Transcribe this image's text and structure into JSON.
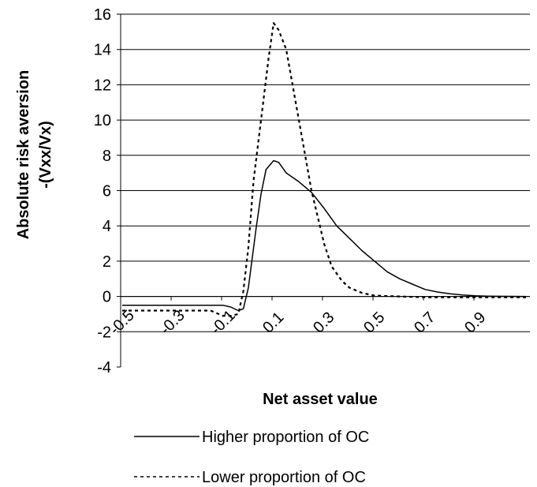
{
  "chart_data": {
    "type": "line",
    "title": "",
    "xlabel": "Net asset value",
    "ylabel_line1": "Absolute risk aversion",
    "ylabel_line2": "-(Vxx/Vx)",
    "ylim": [
      -4,
      16
    ],
    "xlim": [
      -0.5,
      1.1
    ],
    "y_ticks": [
      "-4",
      "-2",
      "0",
      "2",
      "4",
      "6",
      "8",
      "10",
      "12",
      "14",
      "16"
    ],
    "x_ticks": [
      "-0.5",
      "-0.3",
      "-0.1",
      "0.1",
      "0.3",
      "0.5",
      "0.7",
      "0.9"
    ],
    "grid": "horizontal",
    "legend_position": "bottom",
    "series": [
      {
        "name": "Higher proportion of OC",
        "style": "solid",
        "color": "#000000",
        "x": [
          -0.5,
          -0.1,
          -0.07,
          -0.04,
          -0.02,
          0,
          0.03,
          0.05,
          0.07,
          0.1,
          0.12,
          0.15,
          0.2,
          0.25,
          0.3,
          0.35,
          0.4,
          0.45,
          0.5,
          0.55,
          0.6,
          0.65,
          0.7,
          0.75,
          0.8,
          0.85,
          0.9,
          0.95,
          1.0,
          1.1
        ],
        "y": [
          -0.5,
          -0.5,
          -0.6,
          -0.8,
          -0.7,
          0.5,
          3.8,
          5.8,
          7.2,
          7.7,
          7.6,
          7.0,
          6.5,
          5.9,
          5.0,
          4.0,
          3.3,
          2.6,
          2.0,
          1.4,
          1.0,
          0.7,
          0.4,
          0.25,
          0.15,
          0.08,
          0.04,
          0.02,
          0.01,
          0.0
        ]
      },
      {
        "name": "Lower proportion of OC",
        "style": "dashed",
        "color": "#000000",
        "x": [
          -0.5,
          -0.15,
          -0.1,
          -0.07,
          -0.04,
          -0.02,
          0,
          0.02,
          0.05,
          0.08,
          0.1,
          0.12,
          0.15,
          0.2,
          0.25,
          0.3,
          0.33,
          0.37,
          0.4,
          0.45,
          0.5,
          0.6,
          0.7,
          0.8,
          0.9,
          1.0,
          1.1
        ],
        "y": [
          -0.8,
          -0.8,
          -1.1,
          -1.1,
          -1.0,
          0.3,
          2.8,
          6.5,
          10.0,
          13.5,
          15.5,
          15.1,
          14.0,
          10.0,
          6.0,
          3.0,
          1.7,
          0.9,
          0.5,
          0.2,
          0.05,
          0.0,
          -0.05,
          -0.05,
          -0.05,
          -0.05,
          -0.05
        ]
      }
    ]
  }
}
